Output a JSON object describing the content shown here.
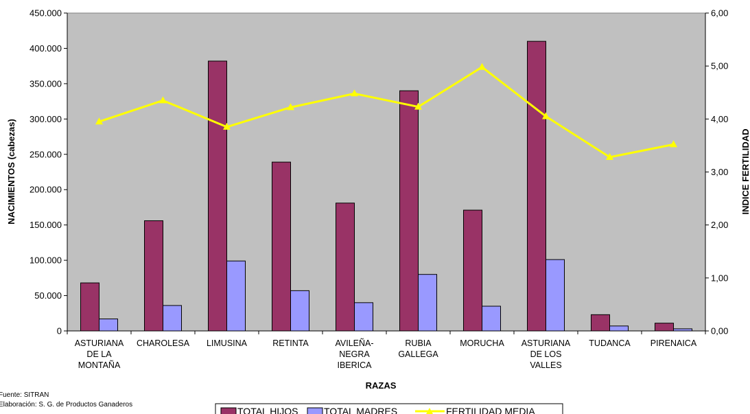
{
  "chart_data": {
    "type": "bar",
    "categories": [
      [
        "ASTURIANA",
        "DE LA",
        "MONTAÑA"
      ],
      [
        "CHAROLESA"
      ],
      [
        "LIMUSINA"
      ],
      [
        "RETINTA"
      ],
      [
        "AVILEÑA-",
        "NEGRA",
        "IBERICA"
      ],
      [
        "RUBIA",
        "GALLEGA"
      ],
      [
        "MORUCHA"
      ],
      [
        "ASTURIANA",
        "DE LOS",
        "VALLES"
      ],
      [
        "TUDANCA"
      ],
      [
        "PIRENAICA"
      ]
    ],
    "series": [
      {
        "name": "TOTAL HIJOS",
        "type": "bar",
        "axis": "left",
        "color": "#993366",
        "values": [
          68000,
          156000,
          382000,
          239000,
          181000,
          340000,
          171000,
          410000,
          23000,
          11000
        ]
      },
      {
        "name": "TOTAL MADRES",
        "type": "bar",
        "axis": "left",
        "color": "#9999ff",
        "values": [
          17000,
          36000,
          99000,
          57000,
          40000,
          80000,
          35000,
          101000,
          7000,
          3000
        ]
      },
      {
        "name": "FERTILIDAD MEDIA",
        "type": "line",
        "axis": "right",
        "color": "#ffff00",
        "values": [
          3.95,
          4.35,
          3.85,
          4.22,
          4.48,
          4.23,
          4.98,
          4.05,
          3.28,
          3.52
        ]
      }
    ],
    "xlabel": "RAZAS",
    "ylabel": "NACIMIENTOS (cabezas)",
    "y2label": "INDICE FERTILIDAD",
    "ylim": [
      0,
      450000
    ],
    "y2lim": [
      0,
      6
    ],
    "yticks": [
      "0",
      "50.000",
      "100.000",
      "150.000",
      "200.000",
      "250.000",
      "300.000",
      "350.000",
      "400.000",
      "450.000"
    ],
    "y2ticks": [
      "0,00",
      "1,00",
      "2,00",
      "3,00",
      "4,00",
      "5,00",
      "6,00"
    ],
    "plot_background": "#c0c0c0",
    "grid": false,
    "legend_position": "bottom-center"
  },
  "source": {
    "line1": "Fuente: SITRAN",
    "line2": "Elaboración: S. G. de Productos Ganaderos"
  }
}
